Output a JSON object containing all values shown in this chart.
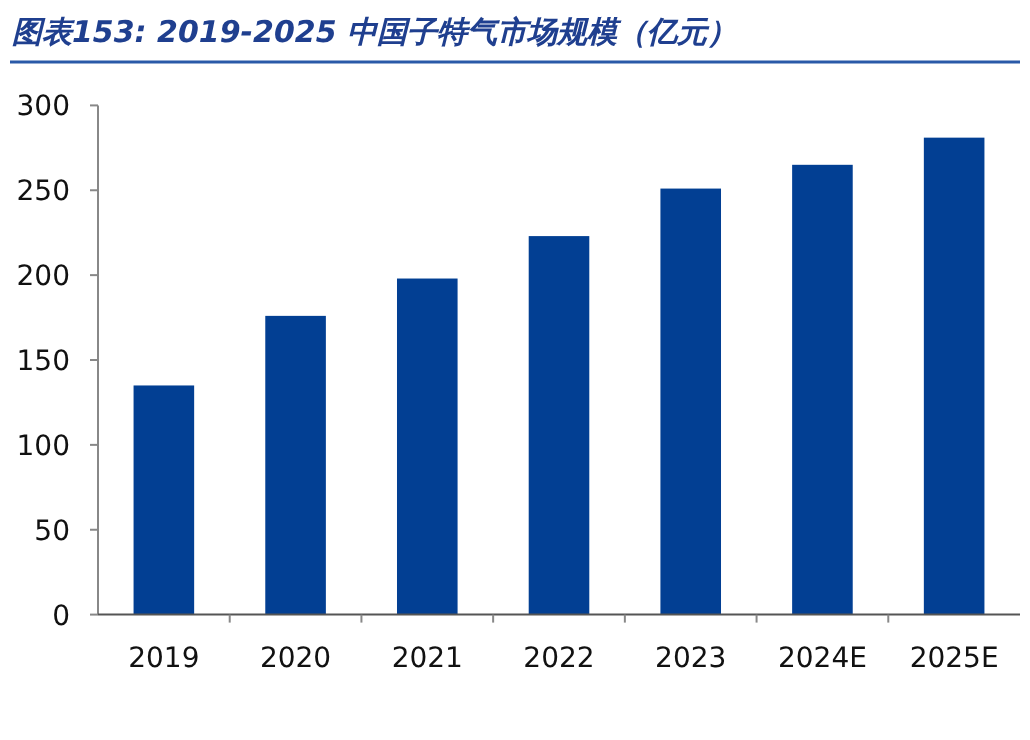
{
  "chart_data": {
    "type": "bar",
    "title": "图表153:  2019-2025 中国子特气市场规模（亿元）",
    "categories": [
      "2019",
      "2020",
      "2021",
      "2022",
      "2023",
      "2024E",
      "2025E"
    ],
    "values": [
      135,
      176,
      198,
      223,
      251,
      265,
      281
    ],
    "color": "#023f93",
    "ylim": [
      0,
      300
    ],
    "yticks": [
      0,
      50,
      100,
      150,
      200,
      250,
      300
    ],
    "grid": false
  }
}
